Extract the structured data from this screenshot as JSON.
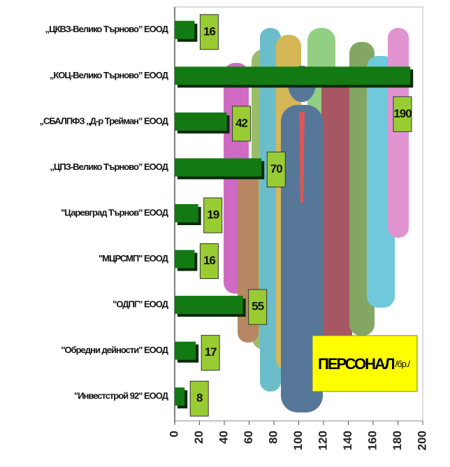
{
  "chart_data": {
    "type": "hbar",
    "title": "ПЕРСОНАЛ",
    "unit_label": "/бр./",
    "categories": [
      "„ЦКВЗ-Велико Търново” ЕООД",
      "„КОЦ-Велико Търново” ЕООД",
      "„СБАЛПФЗ „Д-р Трейман” ЕООД",
      "„ЦПЗ-Велико Търново” ЕООД",
      "\"Царевград Търнов\" ЕООД",
      "\"МЦРСМП\" ЕООД",
      "\"ОДПГ\" ЕООД",
      "\"Обредни дейности\" ЕООД",
      "\"Инвестстрой 92\" ЕООД"
    ],
    "values": [
      16,
      190,
      42,
      70,
      19,
      16,
      55,
      17,
      8
    ],
    "color": "#137a13",
    "label_color": "#99cc33",
    "xlim": [
      0,
      200
    ],
    "xticks": [
      0,
      20,
      40,
      60,
      80,
      100,
      120,
      140,
      160,
      180,
      200
    ]
  }
}
